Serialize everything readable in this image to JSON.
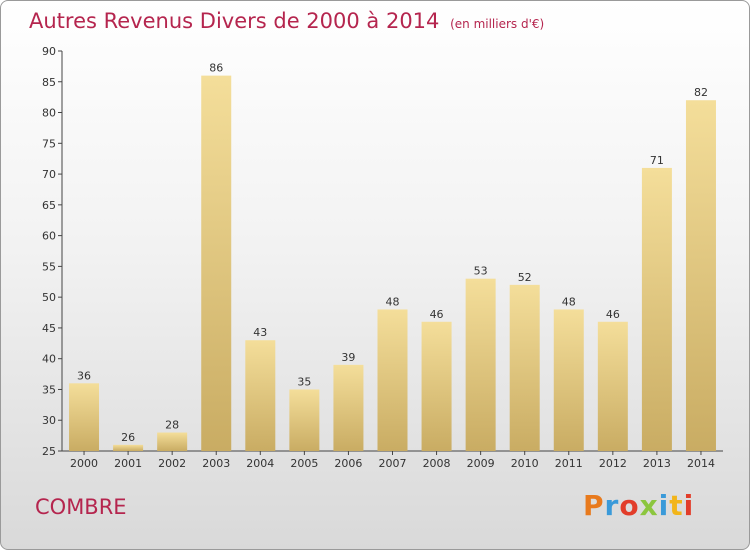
{
  "header": {
    "title": "Autres Revenus Divers de 2000 à 2014",
    "unit": "(en milliers d'€)"
  },
  "location": "COMBRE",
  "logo": {
    "text": "Proxiti",
    "colors": [
      "#e87a1d",
      "#3a9ad9",
      "#e23d2a",
      "#8cc63f",
      "#3a9ad9",
      "#f2b51a",
      "#e23d2a"
    ]
  },
  "colors": {
    "title": "#b5254e",
    "bar_top": "#f4de9a",
    "bar_bottom": "#c9ac63"
  },
  "chart_data": {
    "type": "bar",
    "title": "Autres Revenus Divers de 2000 à 2014",
    "xlabel": "",
    "ylabel": "",
    "categories": [
      "2000",
      "2001",
      "2002",
      "2003",
      "2004",
      "2005",
      "2006",
      "2007",
      "2008",
      "2009",
      "2010",
      "2011",
      "2012",
      "2013",
      "2014"
    ],
    "values": [
      36,
      26,
      28,
      86,
      43,
      35,
      39,
      48,
      46,
      53,
      52,
      48,
      46,
      71,
      82
    ],
    "ylim": [
      25,
      90
    ],
    "yticks": [
      25,
      30,
      35,
      40,
      45,
      50,
      55,
      60,
      65,
      70,
      75,
      80,
      85,
      90
    ],
    "grid": false,
    "data_labels": true
  }
}
